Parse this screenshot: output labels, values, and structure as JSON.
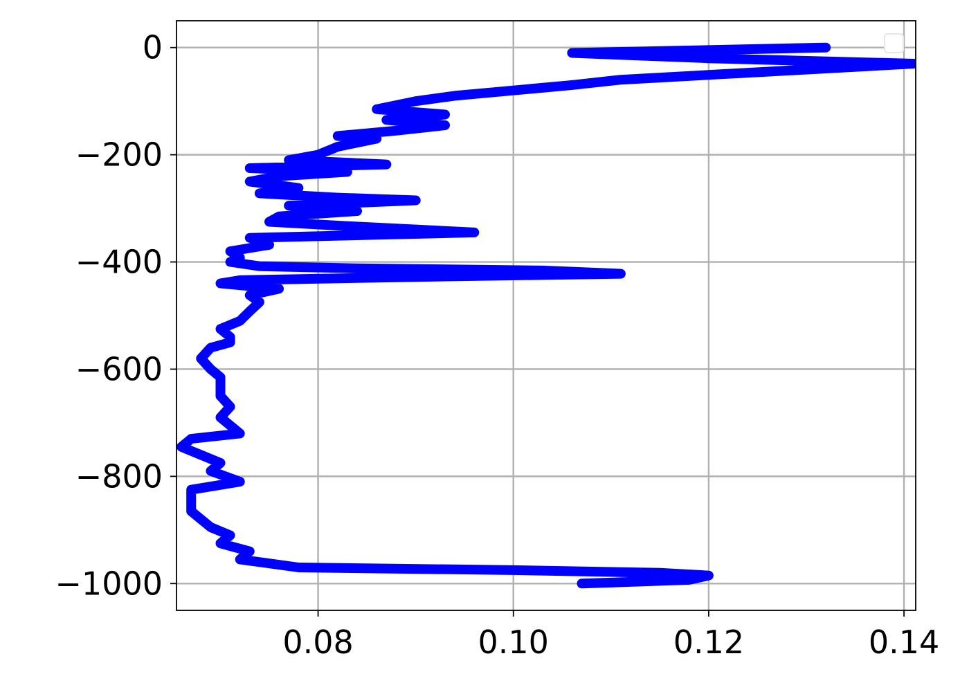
{
  "chart_data": {
    "type": "line",
    "title": "",
    "xlabel": "",
    "ylabel": "",
    "xlim": [
      0.0655,
      0.1412
    ],
    "ylim": [
      -1050,
      50
    ],
    "grid": true,
    "legend": {
      "placement": "top-right",
      "entries": []
    },
    "x_ticks": [
      {
        "value": 0.08,
        "label": "0.08"
      },
      {
        "value": 0.1,
        "label": "0.10"
      },
      {
        "value": 0.12,
        "label": "0.12"
      },
      {
        "value": 0.14,
        "label": "0.14"
      }
    ],
    "y_ticks": [
      {
        "value": 0,
        "label": "0"
      },
      {
        "value": -200,
        "label": "−200"
      },
      {
        "value": -400,
        "label": "−400"
      },
      {
        "value": -600,
        "label": "−600"
      },
      {
        "value": -800,
        "label": "−800"
      },
      {
        "value": -1000,
        "label": "−1000"
      }
    ],
    "series": [
      {
        "color": "#0000ff",
        "points": [
          [
            0.132,
            0
          ],
          [
            0.106,
            -10
          ],
          [
            0.12,
            -20
          ],
          [
            0.141,
            -30
          ],
          [
            0.126,
            -45
          ],
          [
            0.111,
            -60
          ],
          [
            0.106,
            -70
          ],
          [
            0.1,
            -80
          ],
          [
            0.094,
            -90
          ],
          [
            0.09,
            -100
          ],
          [
            0.086,
            -115
          ],
          [
            0.093,
            -125
          ],
          [
            0.087,
            -135
          ],
          [
            0.093,
            -145
          ],
          [
            0.088,
            -155
          ],
          [
            0.082,
            -165
          ],
          [
            0.086,
            -170
          ],
          [
            0.082,
            -185
          ],
          [
            0.08,
            -200
          ],
          [
            0.077,
            -210
          ],
          [
            0.087,
            -218
          ],
          [
            0.073,
            -225
          ],
          [
            0.083,
            -232
          ],
          [
            0.076,
            -240
          ],
          [
            0.073,
            -250
          ],
          [
            0.078,
            -262
          ],
          [
            0.074,
            -272
          ],
          [
            0.082,
            -280
          ],
          [
            0.09,
            -285
          ],
          [
            0.077,
            -295
          ],
          [
            0.084,
            -305
          ],
          [
            0.076,
            -315
          ],
          [
            0.075,
            -325
          ],
          [
            0.083,
            -333
          ],
          [
            0.096,
            -345
          ],
          [
            0.073,
            -355
          ],
          [
            0.075,
            -368
          ],
          [
            0.071,
            -380
          ],
          [
            0.072,
            -392
          ],
          [
            0.071,
            -400
          ],
          [
            0.074,
            -408
          ],
          [
            0.084,
            -412
          ],
          [
            0.103,
            -416
          ],
          [
            0.111,
            -422
          ],
          [
            0.09,
            -428
          ],
          [
            0.072,
            -434
          ],
          [
            0.07,
            -440
          ],
          [
            0.076,
            -450
          ],
          [
            0.073,
            -462
          ],
          [
            0.074,
            -475
          ],
          [
            0.073,
            -492
          ],
          [
            0.072,
            -510
          ],
          [
            0.07,
            -525
          ],
          [
            0.071,
            -540
          ],
          [
            0.071,
            -550
          ],
          [
            0.069,
            -560
          ],
          [
            0.068,
            -580
          ],
          [
            0.069,
            -600
          ],
          [
            0.07,
            -615
          ],
          [
            0.07,
            -630
          ],
          [
            0.07,
            -650
          ],
          [
            0.071,
            -670
          ],
          [
            0.07,
            -690
          ],
          [
            0.071,
            -705
          ],
          [
            0.072,
            -720
          ],
          [
            0.067,
            -730
          ],
          [
            0.066,
            -745
          ],
          [
            0.068,
            -760
          ],
          [
            0.07,
            -775
          ],
          [
            0.069,
            -790
          ],
          [
            0.072,
            -810
          ],
          [
            0.067,
            -825
          ],
          [
            0.067,
            -845
          ],
          [
            0.067,
            -865
          ],
          [
            0.068,
            -880
          ],
          [
            0.069,
            -895
          ],
          [
            0.071,
            -910
          ],
          [
            0.07,
            -925
          ],
          [
            0.073,
            -940
          ],
          [
            0.072,
            -955
          ],
          [
            0.078,
            -970
          ],
          [
            0.1,
            -975
          ],
          [
            0.115,
            -980
          ],
          [
            0.12,
            -985
          ],
          [
            0.118,
            -993
          ],
          [
            0.107,
            -1000
          ]
        ]
      }
    ]
  }
}
